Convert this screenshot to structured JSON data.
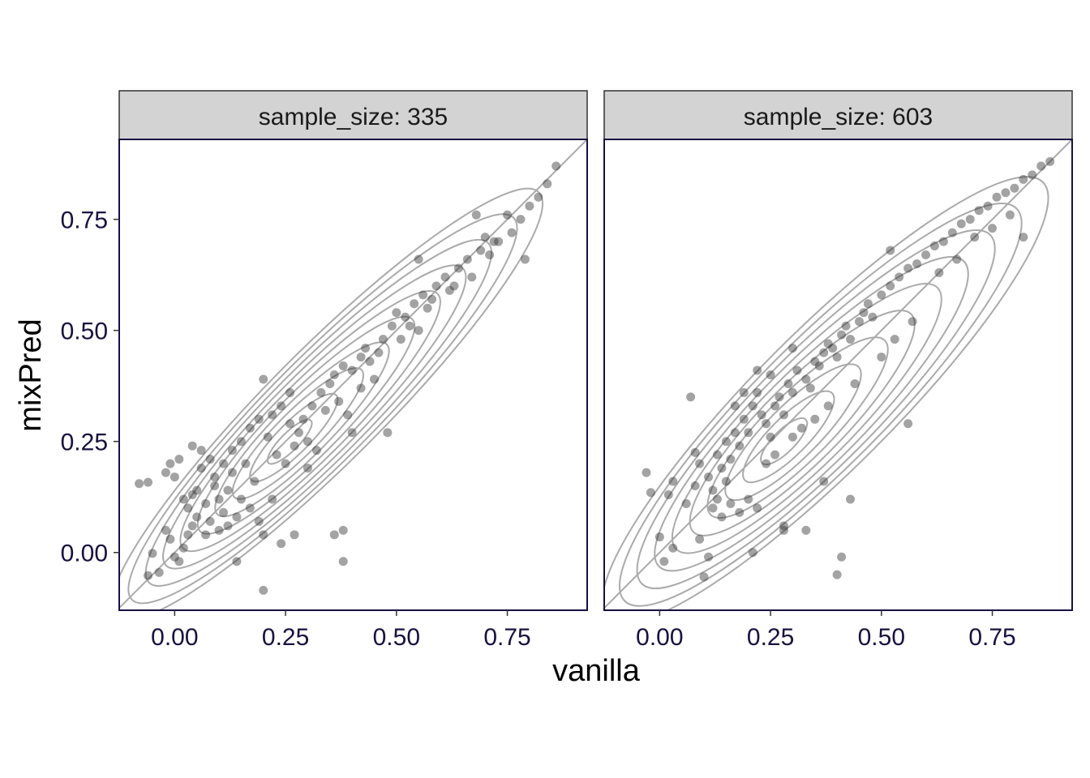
{
  "chart_data": {
    "type": "scatter",
    "xlabel": "vanilla",
    "ylabel": "mixPred",
    "xlim": [
      -0.125,
      0.93
    ],
    "ylim": [
      -0.13,
      0.93
    ],
    "x_ticks": [
      "0.00",
      "0.25",
      "0.50",
      "0.75"
    ],
    "y_ticks": [
      "0.00",
      "0.25",
      "0.50",
      "0.75"
    ],
    "reference_line": "y = x",
    "overlay": "2D density contours",
    "colors": {
      "points": "#333333",
      "contours": "#aaaaaa",
      "strip_fill": "#d3d3d3",
      "axis_text": "#1a1040"
    },
    "facets": [
      {
        "label": "sample_size: 335",
        "points": [
          [
            -0.08,
            0.155
          ],
          [
            -0.06,
            0.158
          ],
          [
            -0.05,
            -0.002
          ],
          [
            -0.06,
            -0.052
          ],
          [
            -0.035,
            -0.045
          ],
          [
            -0.02,
            0.05
          ],
          [
            -0.01,
            0.03
          ],
          [
            0.0,
            -0.01
          ],
          [
            0.01,
            -0.02
          ],
          [
            0.02,
            0.01
          ],
          [
            0.03,
            0.04
          ],
          [
            0.04,
            0.06
          ],
          [
            0.05,
            0.08
          ],
          [
            0.02,
            0.12
          ],
          [
            0.0,
            0.17
          ],
          [
            -0.01,
            0.2
          ],
          [
            -0.02,
            0.18
          ],
          [
            0.01,
            0.21
          ],
          [
            0.04,
            0.24
          ],
          [
            0.06,
            0.23
          ],
          [
            0.03,
            0.1
          ],
          [
            0.05,
            0.14
          ],
          [
            0.07,
            0.11
          ],
          [
            0.08,
            0.07
          ],
          [
            0.1,
            0.05
          ],
          [
            0.12,
            0.06
          ],
          [
            0.14,
            0.08
          ],
          [
            0.09,
            0.17
          ],
          [
            0.11,
            0.2
          ],
          [
            0.13,
            0.18
          ],
          [
            0.06,
            0.19
          ],
          [
            0.08,
            0.21
          ],
          [
            0.1,
            0.12
          ],
          [
            0.12,
            0.14
          ],
          [
            0.15,
            0.12
          ],
          [
            0.17,
            0.1
          ],
          [
            0.19,
            0.07
          ],
          [
            0.2,
            0.04
          ],
          [
            0.14,
            -0.02
          ],
          [
            0.2,
            -0.085
          ],
          [
            0.24,
            0.02
          ],
          [
            0.27,
            0.04
          ],
          [
            0.15,
            0.25
          ],
          [
            0.17,
            0.28
          ],
          [
            0.19,
            0.3
          ],
          [
            0.21,
            0.26
          ],
          [
            0.23,
            0.22
          ],
          [
            0.25,
            0.2
          ],
          [
            0.22,
            0.31
          ],
          [
            0.24,
            0.33
          ],
          [
            0.26,
            0.29
          ],
          [
            0.28,
            0.27
          ],
          [
            0.3,
            0.25
          ],
          [
            0.32,
            0.23
          ],
          [
            0.31,
            0.33
          ],
          [
            0.33,
            0.36
          ],
          [
            0.35,
            0.38
          ],
          [
            0.37,
            0.34
          ],
          [
            0.39,
            0.31
          ],
          [
            0.4,
            0.27
          ],
          [
            0.36,
            0.4
          ],
          [
            0.38,
            0.42
          ],
          [
            0.4,
            0.41
          ],
          [
            0.42,
            0.44
          ],
          [
            0.44,
            0.43
          ],
          [
            0.46,
            0.45
          ],
          [
            0.42,
            0.37
          ],
          [
            0.45,
            0.39
          ],
          [
            0.47,
            0.48
          ],
          [
            0.49,
            0.51
          ],
          [
            0.5,
            0.54
          ],
          [
            0.52,
            0.53
          ],
          [
            0.54,
            0.56
          ],
          [
            0.56,
            0.58
          ],
          [
            0.48,
            0.27
          ],
          [
            0.55,
            0.5
          ],
          [
            0.57,
            0.55
          ],
          [
            0.59,
            0.6
          ],
          [
            0.61,
            0.62
          ],
          [
            0.62,
            0.59
          ],
          [
            0.64,
            0.64
          ],
          [
            0.66,
            0.66
          ],
          [
            0.67,
            0.62
          ],
          [
            0.69,
            0.68
          ],
          [
            0.7,
            0.71
          ],
          [
            0.72,
            0.7
          ],
          [
            0.68,
            0.76
          ],
          [
            0.75,
            0.76
          ],
          [
            0.76,
            0.72
          ],
          [
            0.78,
            0.75
          ],
          [
            0.8,
            0.78
          ],
          [
            0.82,
            0.8
          ],
          [
            0.84,
            0.83
          ],
          [
            0.86,
            0.87
          ],
          [
            0.79,
            0.66
          ],
          [
            0.36,
            0.04
          ],
          [
            0.38,
            0.05
          ],
          [
            0.38,
            -0.02
          ],
          [
            0.2,
            0.39
          ],
          [
            0.55,
            0.66
          ],
          [
            0.73,
            0.7
          ],
          [
            0.71,
            0.67
          ],
          [
            0.63,
            0.6
          ],
          [
            0.58,
            0.57
          ],
          [
            0.53,
            0.51
          ],
          [
            0.51,
            0.48
          ],
          [
            0.43,
            0.46
          ],
          [
            0.34,
            0.32
          ],
          [
            0.29,
            0.3
          ],
          [
            0.27,
            0.24
          ],
          [
            0.18,
            0.16
          ],
          [
            0.16,
            0.2
          ],
          [
            0.11,
            0.09
          ],
          [
            0.09,
            0.15
          ],
          [
            0.07,
            0.04
          ],
          [
            0.04,
            0.13
          ],
          [
            0.13,
            0.23
          ],
          [
            0.26,
            0.36
          ],
          [
            0.3,
            0.19
          ],
          [
            0.22,
            0.12
          ]
        ]
      },
      {
        "label": "sample_size: 603",
        "points": [
          [
            -0.03,
            0.18
          ],
          [
            -0.02,
            0.135
          ],
          [
            0.0,
            0.035
          ],
          [
            0.02,
            0.13
          ],
          [
            0.03,
            0.16
          ],
          [
            0.01,
            -0.02
          ],
          [
            0.03,
            0.01
          ],
          [
            0.06,
            0.11
          ],
          [
            0.08,
            0.15
          ],
          [
            0.07,
            0.35
          ],
          [
            0.09,
            0.03
          ],
          [
            0.11,
            -0.01
          ],
          [
            0.1,
            -0.055
          ],
          [
            0.08,
            0.225
          ],
          [
            0.09,
            0.2
          ],
          [
            0.11,
            0.17
          ],
          [
            0.12,
            0.14
          ],
          [
            0.13,
            0.12
          ],
          [
            0.14,
            0.19
          ],
          [
            0.15,
            0.16
          ],
          [
            0.13,
            0.22
          ],
          [
            0.15,
            0.25
          ],
          [
            0.16,
            0.21
          ],
          [
            0.17,
            0.27
          ],
          [
            0.18,
            0.24
          ],
          [
            0.19,
            0.3
          ],
          [
            0.2,
            0.27
          ],
          [
            0.21,
            0.33
          ],
          [
            0.22,
            0.36
          ],
          [
            0.23,
            0.31
          ],
          [
            0.24,
            0.29
          ],
          [
            0.25,
            0.26
          ],
          [
            0.26,
            0.33
          ],
          [
            0.27,
            0.35
          ],
          [
            0.28,
            0.31
          ],
          [
            0.29,
            0.38
          ],
          [
            0.3,
            0.36
          ],
          [
            0.31,
            0.41
          ],
          [
            0.33,
            0.39
          ],
          [
            0.34,
            0.37
          ],
          [
            0.35,
            0.43
          ],
          [
            0.36,
            0.42
          ],
          [
            0.37,
            0.45
          ],
          [
            0.38,
            0.47
          ],
          [
            0.39,
            0.46
          ],
          [
            0.4,
            0.44
          ],
          [
            0.41,
            0.49
          ],
          [
            0.42,
            0.51
          ],
          [
            0.43,
            0.48
          ],
          [
            0.45,
            0.52
          ],
          [
            0.46,
            0.54
          ],
          [
            0.47,
            0.56
          ],
          [
            0.48,
            0.53
          ],
          [
            0.5,
            0.58
          ],
          [
            0.52,
            0.6
          ],
          [
            0.54,
            0.62
          ],
          [
            0.56,
            0.64
          ],
          [
            0.58,
            0.65
          ],
          [
            0.6,
            0.67
          ],
          [
            0.62,
            0.69
          ],
          [
            0.64,
            0.7
          ],
          [
            0.66,
            0.72
          ],
          [
            0.68,
            0.74
          ],
          [
            0.7,
            0.75
          ],
          [
            0.72,
            0.77
          ],
          [
            0.74,
            0.78
          ],
          [
            0.76,
            0.8
          ],
          [
            0.78,
            0.81
          ],
          [
            0.8,
            0.82
          ],
          [
            0.82,
            0.84
          ],
          [
            0.84,
            0.85
          ],
          [
            0.86,
            0.87
          ],
          [
            0.88,
            0.88
          ],
          [
            0.82,
            0.71
          ],
          [
            0.56,
            0.29
          ],
          [
            0.43,
            0.12
          ],
          [
            0.41,
            -0.01
          ],
          [
            0.4,
            -0.05
          ],
          [
            0.21,
            0.0
          ],
          [
            0.33,
            0.05
          ],
          [
            0.37,
            0.16
          ],
          [
            0.28,
            0.05
          ],
          [
            0.28,
            0.06
          ],
          [
            0.22,
            0.1
          ],
          [
            0.2,
            0.12
          ],
          [
            0.18,
            0.09
          ],
          [
            0.16,
            0.11
          ],
          [
            0.14,
            0.08
          ],
          [
            0.12,
            0.1
          ],
          [
            0.24,
            0.2
          ],
          [
            0.26,
            0.22
          ],
          [
            0.3,
            0.26
          ],
          [
            0.32,
            0.28
          ],
          [
            0.35,
            0.3
          ],
          [
            0.38,
            0.33
          ],
          [
            0.44,
            0.38
          ],
          [
            0.5,
            0.44
          ],
          [
            0.53,
            0.48
          ],
          [
            0.57,
            0.52
          ],
          [
            0.63,
            0.63
          ],
          [
            0.67,
            0.66
          ],
          [
            0.71,
            0.71
          ],
          [
            0.75,
            0.73
          ],
          [
            0.79,
            0.76
          ],
          [
            0.22,
            0.41
          ],
          [
            0.25,
            0.4
          ],
          [
            0.19,
            0.36
          ],
          [
            0.17,
            0.33
          ],
          [
            0.3,
            0.46
          ],
          [
            0.52,
            0.68
          ]
        ]
      }
    ]
  }
}
